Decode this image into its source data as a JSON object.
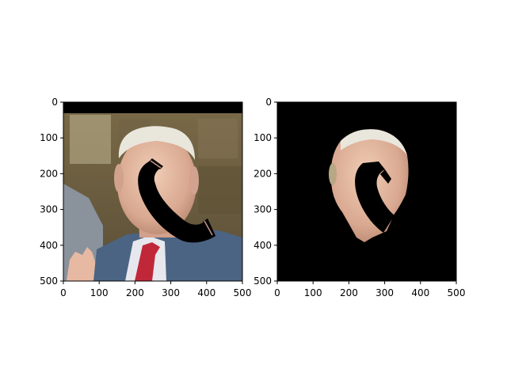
{
  "chart_data": [
    {
      "type": "image",
      "xlim": [
        0,
        500
      ],
      "ylim": [
        500,
        0
      ],
      "xticks": [
        0,
        100,
        200,
        300,
        400,
        500
      ],
      "yticks": [
        0,
        100,
        200,
        300,
        400,
        500
      ],
      "xtick_labels": [
        "0",
        "100",
        "200",
        "300",
        "400",
        "500"
      ],
      "ytick_labels": [
        "0",
        "100",
        "200",
        "300",
        "400",
        "500"
      ],
      "content": "photo with black phone-shaped occlusion"
    },
    {
      "type": "image",
      "xlim": [
        0,
        500
      ],
      "ylim": [
        500,
        0
      ],
      "xticks": [
        0,
        100,
        200,
        300,
        400,
        500
      ],
      "yticks": [
        0,
        100,
        200,
        300,
        400,
        500
      ],
      "xtick_labels": [
        "0",
        "100",
        "200",
        "300",
        "400",
        "500"
      ],
      "ytick_labels": [
        "0",
        "100",
        "200",
        "300",
        "400",
        "500"
      ],
      "content": "segmented face on black background"
    }
  ],
  "colors": {
    "background": "#ffffff",
    "mask": "#000000",
    "suit": "#4b6483",
    "tie": "#c0283a",
    "skin": "#e3b9a2",
    "hair": "#e9e6dc",
    "wall": "#6c5d3d"
  }
}
